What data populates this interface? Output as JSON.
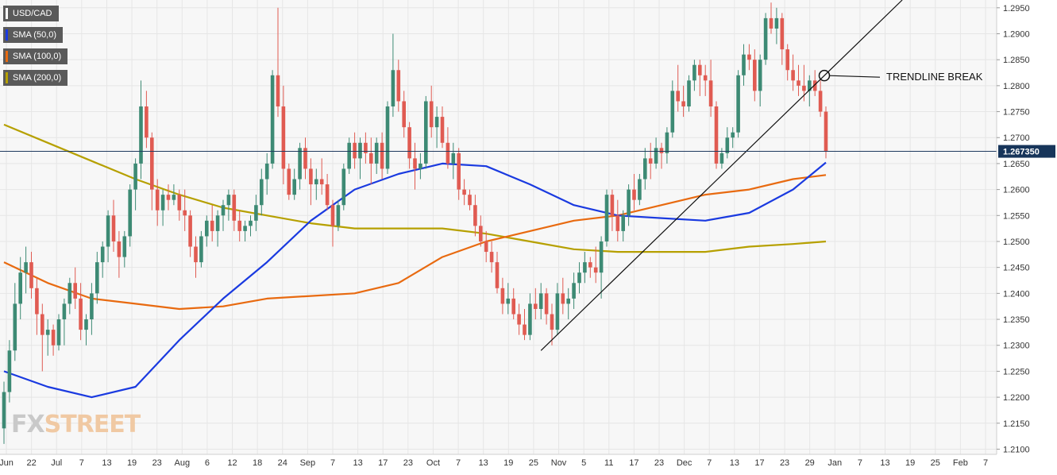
{
  "legend": [
    {
      "label": "USD/CAD",
      "color": "#ffffff"
    },
    {
      "label": "SMA (50,0)",
      "color": "#1a3ae0"
    },
    {
      "label": "SMA (100,0)",
      "color": "#e86a10"
    },
    {
      "label": "SMA (200,0)",
      "color": "#b6a000"
    }
  ],
  "brand": {
    "part1": "FX",
    "part2": "STREET"
  },
  "annotation": "TRENDLINE BREAK",
  "price_tag": "1.267350",
  "colors": {
    "up": "#3d8a74",
    "down": "#e05b52",
    "sma50": "#1a3ae0",
    "sma100": "#e86a10",
    "sma200": "#b6a000",
    "grid": "#e6e6e6"
  },
  "chart_data": {
    "type": "candlestick",
    "pair": "USD/CAD",
    "last_price": 1.26735,
    "ylim": [
      1.209,
      1.2965
    ],
    "y_ticks": [
      "1.2100",
      "1.2150",
      "1.2200",
      "1.2250",
      "1.2300",
      "1.2350",
      "1.2400",
      "1.2450",
      "1.2500",
      "1.2550",
      "1.2600",
      "1.2650",
      "1.2700",
      "1.2750",
      "1.2800",
      "1.2850",
      "1.2900",
      "1.2950"
    ],
    "x_ticks": [
      "Jun",
      "22",
      "Jul",
      "7",
      "13",
      "19",
      "23",
      "Aug",
      "6",
      "12",
      "18",
      "24",
      "Sep",
      "7",
      "13",
      "17",
      "23",
      "Oct",
      "7",
      "13",
      "19",
      "25",
      "Nov",
      "5",
      "11",
      "17",
      "23",
      "Dec",
      "7",
      "13",
      "17",
      "23",
      "29",
      "Jan",
      "7",
      "13",
      "19",
      "25",
      "Feb",
      "7"
    ],
    "candles": [
      [
        1.214,
        1.223,
        1.211,
        1.221
      ],
      [
        1.221,
        1.231,
        1.219,
        1.229
      ],
      [
        1.229,
        1.242,
        1.227,
        1.238
      ],
      [
        1.238,
        1.247,
        1.235,
        1.244
      ],
      [
        1.244,
        1.249,
        1.24,
        1.246
      ],
      [
        1.246,
        1.248,
        1.239,
        1.241
      ],
      [
        1.241,
        1.243,
        1.232,
        1.236
      ],
      [
        1.236,
        1.238,
        1.225,
        1.232
      ],
      [
        1.232,
        1.235,
        1.228,
        1.233
      ],
      [
        1.233,
        1.234,
        1.228,
        1.23
      ],
      [
        1.23,
        1.236,
        1.229,
        1.235
      ],
      [
        1.235,
        1.239,
        1.23,
        1.238
      ],
      [
        1.238,
        1.243,
        1.236,
        1.242
      ],
      [
        1.242,
        1.245,
        1.237,
        1.239
      ],
      [
        1.239,
        1.242,
        1.231,
        1.233
      ],
      [
        1.233,
        1.236,
        1.23,
        1.235
      ],
      [
        1.235,
        1.242,
        1.232,
        1.24
      ],
      [
        1.24,
        1.248,
        1.238,
        1.246
      ],
      [
        1.246,
        1.25,
        1.243,
        1.249
      ],
      [
        1.249,
        1.256,
        1.246,
        1.255
      ],
      [
        1.255,
        1.258,
        1.248,
        1.25
      ],
      [
        1.25,
        1.252,
        1.243,
        1.247
      ],
      [
        1.247,
        1.252,
        1.245,
        1.251
      ],
      [
        1.251,
        1.261,
        1.249,
        1.26
      ],
      [
        1.26,
        1.266,
        1.256,
        1.265
      ],
      [
        1.265,
        1.281,
        1.262,
        1.276
      ],
      [
        1.276,
        1.279,
        1.268,
        1.27
      ],
      [
        1.27,
        1.271,
        1.256,
        1.26
      ],
      [
        1.26,
        1.262,
        1.253,
        1.256
      ],
      [
        1.256,
        1.26,
        1.253,
        1.259
      ],
      [
        1.259,
        1.261,
        1.256,
        1.258
      ],
      [
        1.258,
        1.261,
        1.257,
        1.259
      ],
      [
        1.259,
        1.26,
        1.254,
        1.256
      ],
      [
        1.256,
        1.26,
        1.252,
        1.255
      ],
      [
        1.255,
        1.256,
        1.247,
        1.249
      ],
      [
        1.249,
        1.251,
        1.243,
        1.246
      ],
      [
        1.246,
        1.252,
        1.245,
        1.251
      ],
      [
        1.251,
        1.255,
        1.249,
        1.254
      ],
      [
        1.254,
        1.257,
        1.25,
        1.252
      ],
      [
        1.252,
        1.256,
        1.249,
        1.255
      ],
      [
        1.255,
        1.258,
        1.252,
        1.257
      ],
      [
        1.257,
        1.26,
        1.254,
        1.259
      ],
      [
        1.259,
        1.26,
        1.252,
        1.254
      ],
      [
        1.254,
        1.256,
        1.25,
        1.252
      ],
      [
        1.252,
        1.254,
        1.25,
        1.253
      ],
      [
        1.253,
        1.255,
        1.251,
        1.254
      ],
      [
        1.254,
        1.259,
        1.252,
        1.257
      ],
      [
        1.257,
        1.264,
        1.255,
        1.262
      ],
      [
        1.262,
        1.267,
        1.259,
        1.265
      ],
      [
        1.265,
        1.283,
        1.264,
        1.282
      ],
      [
        1.282,
        1.295,
        1.274,
        1.276
      ],
      [
        1.276,
        1.28,
        1.261,
        1.264
      ],
      [
        1.264,
        1.265,
        1.258,
        1.259
      ],
      [
        1.259,
        1.264,
        1.258,
        1.262
      ],
      [
        1.262,
        1.269,
        1.26,
        1.268
      ],
      [
        1.268,
        1.27,
        1.262,
        1.264
      ],
      [
        1.264,
        1.266,
        1.257,
        1.261
      ],
      [
        1.261,
        1.264,
        1.258,
        1.262
      ],
      [
        1.262,
        1.266,
        1.259,
        1.261
      ],
      [
        1.261,
        1.263,
        1.256,
        1.257
      ],
      [
        1.257,
        1.258,
        1.249,
        1.253
      ],
      [
        1.253,
        1.258,
        1.252,
        1.257
      ],
      [
        1.257,
        1.265,
        1.256,
        1.264
      ],
      [
        1.264,
        1.27,
        1.263,
        1.269
      ],
      [
        1.269,
        1.271,
        1.264,
        1.266
      ],
      [
        1.266,
        1.27,
        1.262,
        1.269
      ],
      [
        1.269,
        1.271,
        1.265,
        1.267
      ],
      [
        1.267,
        1.27,
        1.261,
        1.265
      ],
      [
        1.265,
        1.27,
        1.263,
        1.269
      ],
      [
        1.269,
        1.271,
        1.262,
        1.264
      ],
      [
        1.264,
        1.277,
        1.263,
        1.276
      ],
      [
        1.276,
        1.29,
        1.274,
        1.283
      ],
      [
        1.283,
        1.285,
        1.275,
        1.277
      ],
      [
        1.277,
        1.279,
        1.27,
        1.272
      ],
      [
        1.272,
        1.273,
        1.264,
        1.266
      ],
      [
        1.266,
        1.269,
        1.26,
        1.264
      ],
      [
        1.264,
        1.267,
        1.262,
        1.265
      ],
      [
        1.265,
        1.278,
        1.264,
        1.277
      ],
      [
        1.277,
        1.28,
        1.27,
        1.272
      ],
      [
        1.272,
        1.276,
        1.268,
        1.274
      ],
      [
        1.274,
        1.276,
        1.268,
        1.269
      ],
      [
        1.269,
        1.272,
        1.264,
        1.265
      ],
      [
        1.265,
        1.269,
        1.262,
        1.267
      ],
      [
        1.267,
        1.268,
        1.258,
        1.26
      ],
      [
        1.26,
        1.262,
        1.257,
        1.259
      ],
      [
        1.259,
        1.26,
        1.256,
        1.257
      ],
      [
        1.257,
        1.259,
        1.251,
        1.253
      ],
      [
        1.253,
        1.255,
        1.249,
        1.25
      ],
      [
        1.25,
        1.252,
        1.246,
        1.248
      ],
      [
        1.248,
        1.25,
        1.244,
        1.246
      ],
      [
        1.246,
        1.248,
        1.24,
        1.241
      ],
      [
        1.241,
        1.243,
        1.236,
        1.238
      ],
      [
        1.238,
        1.242,
        1.236,
        1.239
      ],
      [
        1.239,
        1.241,
        1.235,
        1.236
      ],
      [
        1.236,
        1.238,
        1.232,
        1.234
      ],
      [
        1.234,
        1.237,
        1.231,
        1.232
      ],
      [
        1.232,
        1.24,
        1.231,
        1.238
      ],
      [
        1.238,
        1.241,
        1.235,
        1.237
      ],
      [
        1.237,
        1.242,
        1.235,
        1.24
      ],
      [
        1.24,
        1.241,
        1.234,
        1.236
      ],
      [
        1.236,
        1.238,
        1.23,
        1.233
      ],
      [
        1.233,
        1.242,
        1.232,
        1.24
      ],
      [
        1.24,
        1.243,
        1.236,
        1.238
      ],
      [
        1.238,
        1.241,
        1.235,
        1.239
      ],
      [
        1.239,
        1.244,
        1.237,
        1.242
      ],
      [
        1.242,
        1.246,
        1.24,
        1.244
      ],
      [
        1.244,
        1.248,
        1.242,
        1.246
      ],
      [
        1.246,
        1.247,
        1.243,
        1.245
      ],
      [
        1.245,
        1.249,
        1.242,
        1.244
      ],
      [
        1.244,
        1.251,
        1.239,
        1.25
      ],
      [
        1.25,
        1.26,
        1.249,
        1.259
      ],
      [
        1.259,
        1.26,
        1.252,
        1.255
      ],
      [
        1.255,
        1.258,
        1.25,
        1.252
      ],
      [
        1.252,
        1.256,
        1.25,
        1.255
      ],
      [
        1.255,
        1.261,
        1.253,
        1.26
      ],
      [
        1.26,
        1.263,
        1.256,
        1.258
      ],
      [
        1.258,
        1.263,
        1.257,
        1.262
      ],
      [
        1.262,
        1.268,
        1.26,
        1.266
      ],
      [
        1.266,
        1.269,
        1.262,
        1.265
      ],
      [
        1.265,
        1.27,
        1.264,
        1.268
      ],
      [
        1.268,
        1.269,
        1.264,
        1.267
      ],
      [
        1.267,
        1.272,
        1.265,
        1.271
      ],
      [
        1.271,
        1.281,
        1.27,
        1.279
      ],
      [
        1.279,
        1.284,
        1.275,
        1.277
      ],
      [
        1.277,
        1.28,
        1.274,
        1.276
      ],
      [
        1.276,
        1.282,
        1.275,
        1.281
      ],
      [
        1.281,
        1.285,
        1.279,
        1.284
      ],
      [
        1.284,
        1.285,
        1.278,
        1.282
      ],
      [
        1.282,
        1.284,
        1.278,
        1.281
      ],
      [
        1.281,
        1.285,
        1.274,
        1.276
      ],
      [
        1.276,
        1.277,
        1.264,
        1.265
      ],
      [
        1.265,
        1.268,
        1.264,
        1.267
      ],
      [
        1.267,
        1.272,
        1.266,
        1.27
      ],
      [
        1.27,
        1.272,
        1.268,
        1.271
      ],
      [
        1.271,
        1.283,
        1.27,
        1.282
      ],
      [
        1.282,
        1.288,
        1.28,
        1.286
      ],
      [
        1.286,
        1.288,
        1.283,
        1.285
      ],
      [
        1.285,
        1.287,
        1.277,
        1.279
      ],
      [
        1.279,
        1.286,
        1.276,
        1.285
      ],
      [
        1.285,
        1.294,
        1.284,
        1.293
      ],
      [
        1.293,
        1.296,
        1.29,
        1.291
      ],
      [
        1.291,
        1.295,
        1.288,
        1.293
      ],
      [
        1.293,
        1.294,
        1.284,
        1.287
      ],
      [
        1.287,
        1.288,
        1.281,
        1.283
      ],
      [
        1.283,
        1.286,
        1.279,
        1.281
      ],
      [
        1.281,
        1.284,
        1.278,
        1.28
      ],
      [
        1.28,
        1.284,
        1.277,
        1.279
      ],
      [
        1.279,
        1.282,
        1.276,
        1.281
      ],
      [
        1.281,
        1.283,
        1.278,
        1.279
      ],
      [
        1.279,
        1.281,
        1.274,
        1.275
      ],
      [
        1.275,
        1.276,
        1.266,
        1.2674
      ]
    ],
    "sma50": [
      [
        0,
        1.225
      ],
      [
        8,
        1.222
      ],
      [
        16,
        1.22
      ],
      [
        24,
        1.222
      ],
      [
        32,
        1.231
      ],
      [
        40,
        1.239
      ],
      [
        48,
        1.246
      ],
      [
        56,
        1.254
      ],
      [
        64,
        1.26
      ],
      [
        72,
        1.263
      ],
      [
        80,
        1.265
      ],
      [
        88,
        1.2645
      ],
      [
        96,
        1.261
      ],
      [
        104,
        1.257
      ],
      [
        112,
        1.255
      ],
      [
        120,
        1.2545
      ],
      [
        128,
        1.254
      ],
      [
        136,
        1.2555
      ],
      [
        144,
        1.26
      ],
      [
        150,
        1.2652
      ]
    ],
    "sma100": [
      [
        0,
        1.246
      ],
      [
        8,
        1.242
      ],
      [
        16,
        1.239
      ],
      [
        24,
        1.238
      ],
      [
        32,
        1.237
      ],
      [
        40,
        1.2375
      ],
      [
        48,
        1.239
      ],
      [
        56,
        1.2395
      ],
      [
        64,
        1.24
      ],
      [
        72,
        1.242
      ],
      [
        80,
        1.247
      ],
      [
        88,
        1.25
      ],
      [
        96,
        1.252
      ],
      [
        104,
        1.254
      ],
      [
        112,
        1.255
      ],
      [
        120,
        1.257
      ],
      [
        128,
        1.259
      ],
      [
        136,
        1.26
      ],
      [
        144,
        1.262
      ],
      [
        150,
        1.2628
      ]
    ],
    "sma200": [
      [
        0,
        1.2725
      ],
      [
        8,
        1.269
      ],
      [
        16,
        1.2655
      ],
      [
        24,
        1.262
      ],
      [
        32,
        1.259
      ],
      [
        40,
        1.2565
      ],
      [
        48,
        1.255
      ],
      [
        56,
        1.2535
      ],
      [
        64,
        1.2525
      ],
      [
        72,
        1.2525
      ],
      [
        80,
        1.2525
      ],
      [
        88,
        1.2515
      ],
      [
        96,
        1.25
      ],
      [
        104,
        1.2485
      ],
      [
        112,
        1.248
      ],
      [
        120,
        1.248
      ],
      [
        128,
        1.248
      ],
      [
        136,
        1.249
      ],
      [
        144,
        1.2495
      ],
      [
        150,
        1.25
      ]
    ],
    "trendline": {
      "from": [
        1.229
      ],
      "to": [
        1.2965
      ]
    }
  }
}
